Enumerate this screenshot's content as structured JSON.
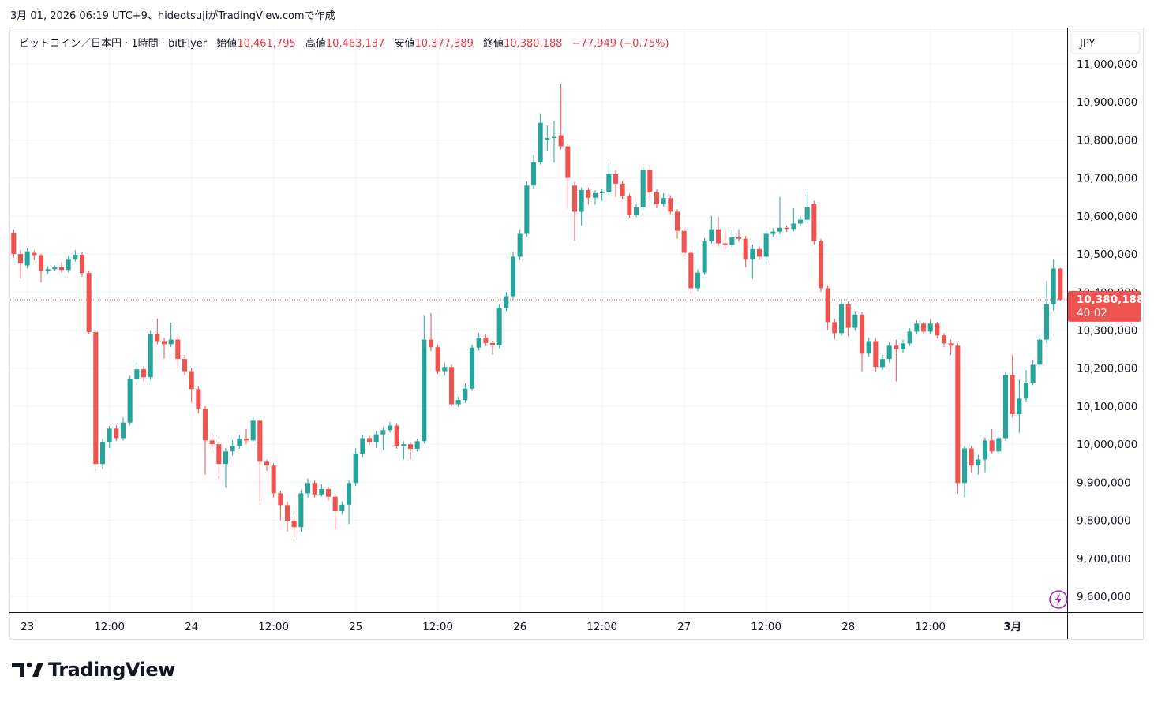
{
  "header": "3月 01, 2026 06:19 UTC+9、hideotsujiがTradingView.comで作成",
  "brand": "TradingView",
  "chart_data": {
    "type": "candlestick",
    "legend": {
      "symbol": "ビットコイン／日本円 · 1時間 · bitFlyer",
      "open_label": "始値",
      "open": "10,461,795",
      "high_label": "高値",
      "high": "10,463,137",
      "low_label": "安値",
      "low": "10,377,389",
      "close_label": "終値",
      "close": "10,380,188",
      "change": "−77,949 (−0.75%)"
    },
    "currency": "JPY",
    "up_color": "#26a69a",
    "down_color": "#ef5350",
    "grid": true,
    "last_price": {
      "value": 10380188,
      "label": "10,380,188"
    },
    "countdown": "40:02",
    "xlim": [
      -0.5,
      154
    ],
    "ylim": [
      9558600,
      11093200
    ],
    "xticks": [
      {
        "value": 2,
        "label": "23"
      },
      {
        "value": 14,
        "label": "12:00"
      },
      {
        "value": 26,
        "label": "24"
      },
      {
        "value": 38,
        "label": "12:00"
      },
      {
        "value": 50,
        "label": "25"
      },
      {
        "value": 62,
        "label": "12:00"
      },
      {
        "value": 74,
        "label": "26"
      },
      {
        "value": 86,
        "label": "12:00"
      },
      {
        "value": 98,
        "label": "27"
      },
      {
        "value": 110,
        "label": "12:00"
      },
      {
        "value": 122,
        "label": "28"
      },
      {
        "value": 134,
        "label": "12:00"
      },
      {
        "value": 146,
        "label": "3月"
      }
    ],
    "yticks": [
      {
        "value": 9600000,
        "label": "9,600,000"
      },
      {
        "value": 9700000,
        "label": "9,700,000"
      },
      {
        "value": 9800000,
        "label": "9,800,000"
      },
      {
        "value": 9900000,
        "label": "9,900,000"
      },
      {
        "value": 10000000,
        "label": "10,000,000"
      },
      {
        "value": 10100000,
        "label": "10,100,000"
      },
      {
        "value": 10200000,
        "label": "10,200,000"
      },
      {
        "value": 10300000,
        "label": "10,300,000"
      },
      {
        "value": 10400000,
        "label": "10,400,000"
      },
      {
        "value": 10500000,
        "label": "10,500,000"
      },
      {
        "value": 10600000,
        "label": "10,600,000"
      },
      {
        "value": 10700000,
        "label": "10,700,000"
      },
      {
        "value": 10800000,
        "label": "10,800,000"
      },
      {
        "value": 10900000,
        "label": "10,900,000"
      },
      {
        "value": 11000000,
        "label": "11,000,000"
      }
    ],
    "open": [
      10555000,
      10500000,
      10470000,
      10503000,
      10497000,
      10455000,
      10460000,
      10465000,
      10458000,
      10487000,
      10498000,
      10450000,
      10295000,
      9948000,
      10006000,
      10041000,
      10016000,
      10057000,
      10172000,
      10197000,
      10176000,
      10290000,
      10271000,
      10263000,
      10275000,
      10224000,
      10192000,
      10145000,
      10093000,
      10010000,
      10000000,
      9948000,
      9981000,
      9995000,
      10015000,
      10010000,
      10062000,
      9954000,
      9944000,
      9871000,
      9840000,
      9799000,
      9782000,
      9871000,
      9898000,
      9868000,
      9882000,
      9862000,
      9824000,
      9841000,
      9898000,
      9975000,
      10016000,
      10006000,
      10026000,
      10037000,
      10049000,
      9996000,
      10000000,
      9988000,
      10008000,
      10275000,
      10255000,
      10192000,
      10203000,
      10105000,
      10116000,
      10146000,
      10254000,
      10280000,
      10266000,
      10260000,
      10358000,
      10389000,
      10493000,
      10553000,
      10680000,
      10741000,
      10800000,
      10805000,
      10812000,
      10783000,
      10680000,
      10611000,
      10668000,
      10648000,
      10660000,
      10662000,
      10710000,
      10685000,
      10652000,
      10602000,
      10623000,
      10720000,
      10662000,
      10631000,
      10647000,
      10611000,
      10561000,
      10503000,
      10410000,
      10451000,
      10534000,
      10565000,
      10528000,
      10524000,
      10544000,
      10540000,
      10487000,
      10513000,
      10493000,
      10553000,
      10559000,
      10569000,
      10566000,
      10580000,
      10590000,
      10632000,
      10534000,
      10410000,
      10321000,
      10292000,
      10368000,
      10306000,
      10341000,
      10238000,
      10271000,
      10203000,
      10224000,
      10259000,
      10250000,
      10265000,
      10296000,
      10317000,
      10296000,
      10317000,
      10286000,
      10265000,
      10259000,
      9898000,
      9989000,
      9944000,
      9960000,
      10010000,
      9981000,
      10016000,
      10182000,
      10079000,
      10120000,
      10162000,
      10209000,
      10275000,
      10368000,
      10461795
    ],
    "high": [
      10565000,
      10510000,
      10515000,
      10510000,
      10500000,
      10468000,
      10470000,
      10478000,
      10495000,
      10510000,
      10505000,
      10455000,
      10300000,
      10015000,
      10048000,
      10050000,
      10070000,
      10180000,
      10215000,
      10205000,
      10298000,
      10330000,
      10280000,
      10320000,
      10285000,
      10235000,
      10200000,
      10152000,
      10100000,
      10030000,
      10010000,
      9990000,
      10010000,
      10025000,
      10040000,
      10070000,
      10068000,
      9960000,
      9950000,
      9878000,
      9850000,
      9810000,
      9880000,
      9910000,
      9905000,
      9895000,
      9888000,
      9870000,
      9850000,
      9905000,
      9990000,
      10025000,
      10022000,
      10035000,
      10045000,
      10058000,
      10055000,
      10008000,
      10005000,
      10015000,
      10340000,
      10345000,
      10262000,
      10215000,
      10210000,
      10125000,
      10160000,
      10262000,
      10292000,
      10288000,
      10272000,
      10368000,
      10400000,
      10505000,
      10565000,
      10690000,
      10760000,
      10870000,
      10838000,
      10850000,
      10948000,
      10790000,
      10690000,
      10675000,
      10675000,
      10668000,
      10670000,
      10740000,
      10720000,
      10692000,
      10658000,
      10632000,
      10728000,
      10735000,
      10670000,
      10660000,
      10655000,
      10618000,
      10568000,
      10510000,
      10460000,
      10542000,
      10600000,
      10598000,
      10560000,
      10565000,
      10565000,
      10548000,
      10525000,
      10520000,
      10562000,
      10568000,
      10650000,
      10575000,
      10620000,
      10600000,
      10665000,
      10640000,
      10540000,
      10418000,
      10330000,
      10378000,
      10375000,
      10350000,
      10348000,
      10280000,
      10278000,
      10235000,
      10268000,
      10275000,
      10275000,
      10305000,
      10325000,
      10322000,
      10328000,
      10322000,
      10292000,
      10275000,
      10265000,
      9995000,
      9995000,
      9972000,
      10018000,
      10040000,
      10028000,
      10190000,
      10235000,
      10170000,
      10195000,
      10222000,
      10288000,
      10430000,
      10487000,
      10463137
    ],
    "low": [
      10490000,
      10435000,
      10462000,
      10485000,
      10425000,
      10448000,
      10455000,
      10450000,
      10452000,
      10480000,
      10440000,
      10290000,
      9930000,
      9935000,
      9990000,
      10008000,
      10010000,
      10050000,
      10160000,
      10165000,
      10170000,
      10262000,
      10225000,
      10255000,
      10200000,
      10180000,
      10110000,
      10080000,
      9920000,
      9985000,
      9910000,
      9885000,
      9970000,
      9988000,
      10000000,
      10005000,
      9850000,
      9930000,
      9860000,
      9800000,
      9770000,
      9755000,
      9770000,
      9860000,
      9858000,
      9862000,
      9852000,
      9775000,
      9815000,
      9790000,
      9890000,
      9965000,
      9998000,
      9990000,
      9985000,
      10030000,
      9988000,
      9960000,
      9960000,
      9980000,
      10002000,
      10245000,
      10185000,
      10180000,
      10100000,
      10098000,
      10108000,
      10140000,
      10245000,
      10258000,
      10235000,
      10252000,
      10350000,
      10380000,
      10485000,
      10545000,
      10672000,
      10735000,
      10770000,
      10740000,
      10775000,
      10620000,
      10535000,
      10575000,
      10630000,
      10630000,
      10640000,
      10655000,
      10650000,
      10645000,
      10595000,
      10598000,
      10615000,
      10640000,
      10620000,
      10625000,
      10605000,
      10540000,
      10495000,
      10395000,
      10402000,
      10445000,
      10528000,
      10520000,
      10512000,
      10518000,
      10532000,
      10465000,
      10435000,
      10486000,
      10475000,
      10545000,
      10552000,
      10558000,
      10560000,
      10572000,
      10580000,
      10525000,
      10400000,
      10300000,
      10275000,
      10285000,
      10285000,
      10298000,
      10190000,
      10230000,
      10190000,
      10195000,
      10215000,
      10165000,
      10240000,
      10258000,
      10288000,
      10288000,
      10290000,
      10278000,
      10255000,
      10235000,
      9870000,
      9860000,
      9925000,
      9920000,
      9925000,
      9975000,
      9975000,
      10008000,
      10070000,
      10030000,
      10110000,
      10155000,
      10200000,
      10265000,
      10352000,
      10377389
    ],
    "close": [
      10500000,
      10475000,
      10507000,
      10497000,
      10455000,
      10460000,
      10465000,
      10458000,
      10487000,
      10498000,
      10450000,
      10295000,
      9948000,
      10006000,
      10041000,
      10016000,
      10057000,
      10172000,
      10197000,
      10176000,
      10290000,
      10271000,
      10263000,
      10275000,
      10224000,
      10192000,
      10145000,
      10093000,
      10010000,
      10000000,
      9948000,
      9981000,
      9995000,
      10015000,
      10010000,
      10062000,
      9954000,
      9944000,
      9871000,
      9840000,
      9799000,
      9782000,
      9871000,
      9898000,
      9868000,
      9882000,
      9862000,
      9824000,
      9841000,
      9898000,
      9975000,
      10016000,
      10006000,
      10026000,
      10037000,
      10049000,
      9996000,
      10000000,
      9988000,
      10008000,
      10275000,
      10255000,
      10192000,
      10203000,
      10105000,
      10116000,
      10146000,
      10254000,
      10280000,
      10266000,
      10260000,
      10358000,
      10389000,
      10493000,
      10553000,
      10680000,
      10741000,
      10845000,
      10805000,
      10808000,
      10783000,
      10700000,
      10611000,
      10668000,
      10648000,
      10660000,
      10662000,
      10710000,
      10685000,
      10652000,
      10602000,
      10623000,
      10720000,
      10662000,
      10631000,
      10647000,
      10611000,
      10561000,
      10503000,
      10410000,
      10451000,
      10534000,
      10565000,
      10528000,
      10524000,
      10544000,
      10540000,
      10487000,
      10513000,
      10493000,
      10553000,
      10559000,
      10569000,
      10566000,
      10580000,
      10590000,
      10623000,
      10534000,
      10410000,
      10321000,
      10292000,
      10368000,
      10306000,
      10341000,
      10238000,
      10271000,
      10203000,
      10224000,
      10259000,
      10250000,
      10265000,
      10296000,
      10317000,
      10296000,
      10317000,
      10286000,
      10265000,
      10259000,
      9898000,
      9989000,
      9944000,
      9960000,
      10010000,
      9981000,
      10016000,
      10182000,
      10079000,
      10120000,
      10162000,
      10209000,
      10275000,
      10368000,
      10461795,
      10380188
    ]
  }
}
